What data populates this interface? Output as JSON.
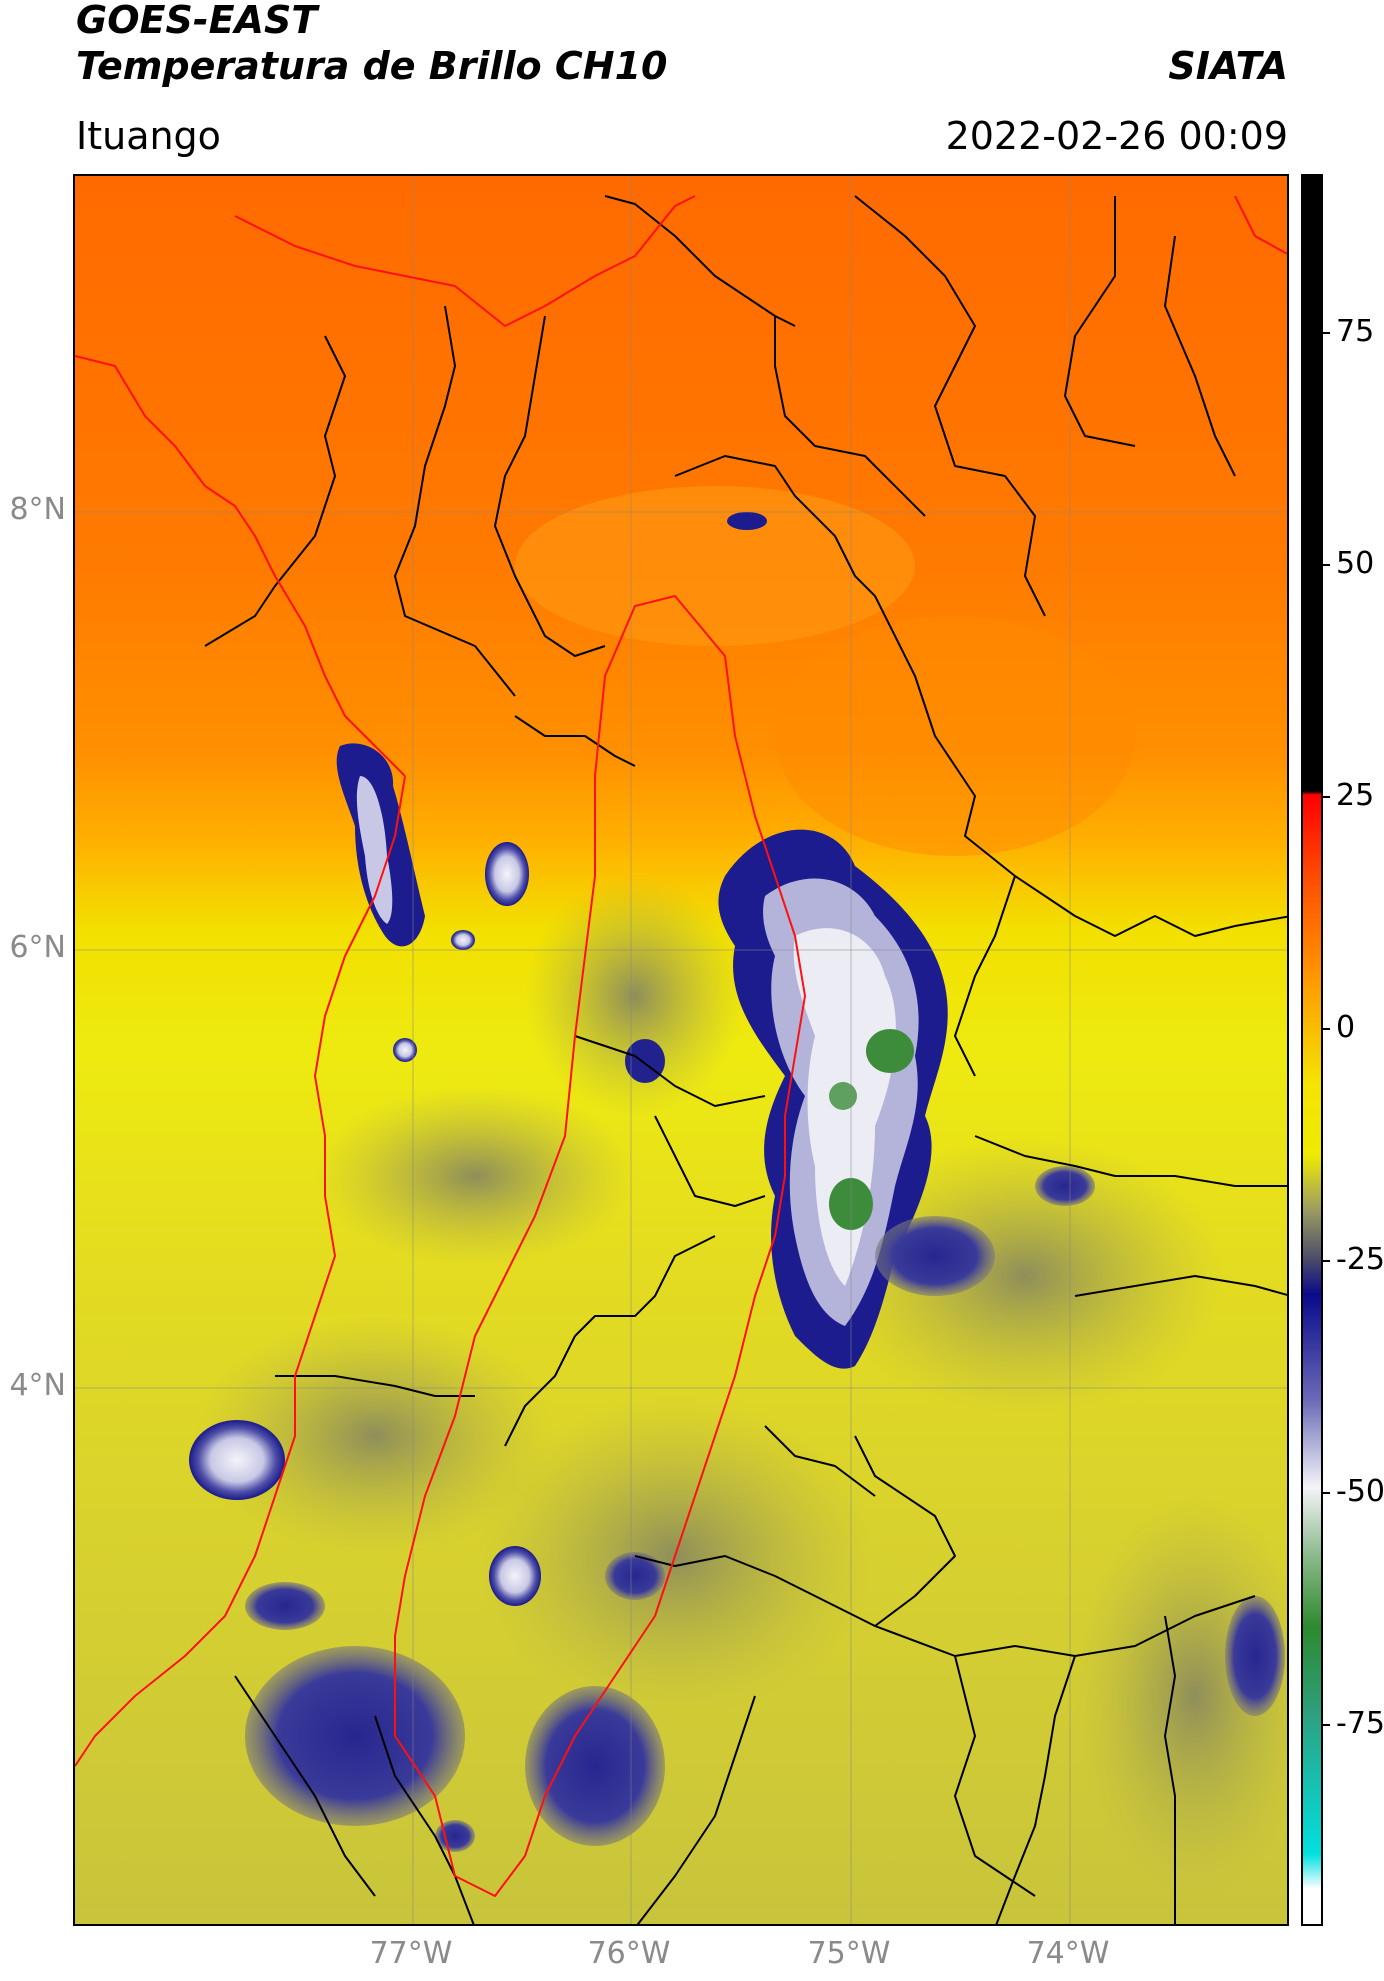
{
  "header": {
    "satellite": "GOES-EAST",
    "product": "Temperatura de Brillo CH10",
    "organization": "SIATA",
    "location": "Ituango",
    "timestamp": "2022-02-26 00:09"
  },
  "map": {
    "lat_labels": [
      "8°N",
      "6°N",
      "4°N"
    ],
    "lon_labels": [
      "77°W",
      "76°W",
      "75°W",
      "74°W"
    ],
    "colors": {
      "warm_orange": "#ff6a00",
      "orange": "#ff9500",
      "yellow": "#f2ea00",
      "olive": "#c9c43a",
      "cold_navy": "#1a1a8c",
      "cold_white": "#ececf5",
      "very_cold_green": "#3c8c3c",
      "borders": "#000000",
      "basin": "#ff0000"
    }
  },
  "colorbar": {
    "ticks": [
      "75",
      "50",
      "25",
      "0",
      "-25",
      "-50",
      "-75"
    ],
    "range": [
      -95,
      90
    ],
    "units": ""
  }
}
